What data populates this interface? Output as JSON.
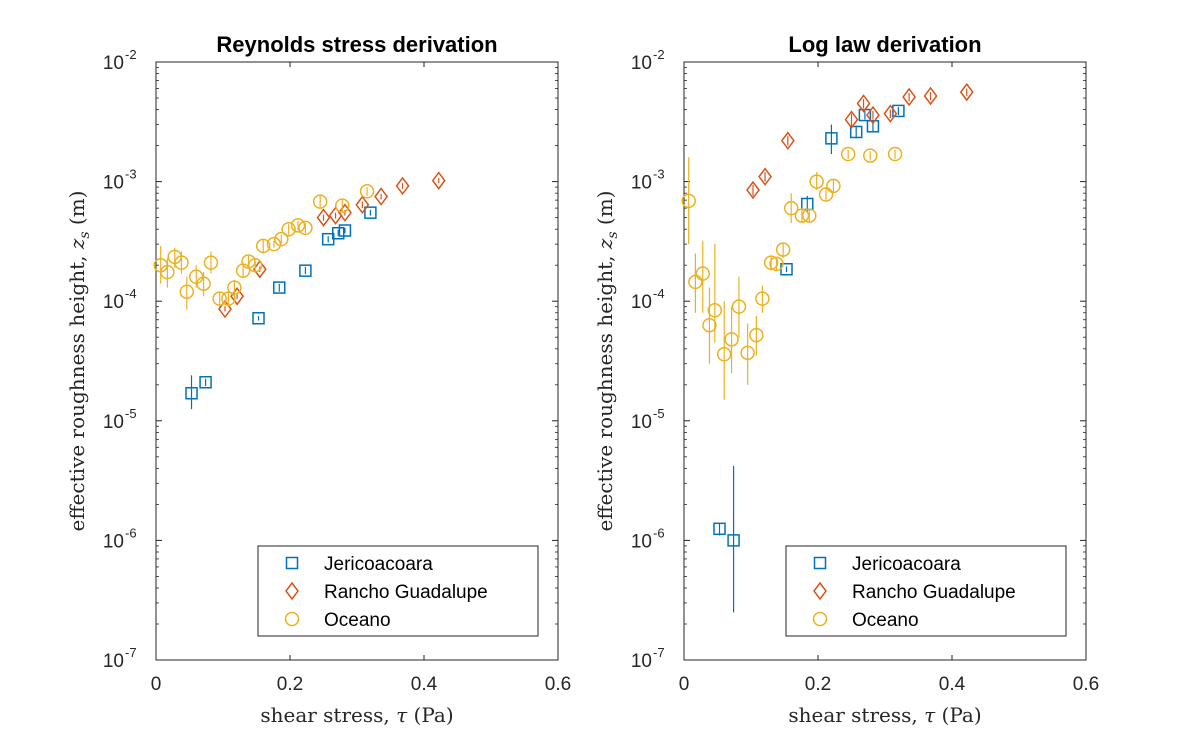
{
  "chart_data": [
    {
      "type": "scatter",
      "title": "Reynolds stress derivation",
      "xlabel": {
        "text": "shear stress, ",
        "symbol": "τ",
        "unit": " (Pa)"
      },
      "ylabel": {
        "text": "effective roughness height, ",
        "symbol": "z",
        "sub": "s",
        "unit": " (m)"
      },
      "xlim": [
        0,
        0.6
      ],
      "ylim": [
        1e-07,
        0.01
      ],
      "yscale": "log",
      "xticks": [
        0,
        0.2,
        0.4,
        0.6
      ],
      "xtick_labels": [
        "0",
        "0.2",
        "0.4",
        "0.6"
      ],
      "ytick_exponents": [
        -7,
        -6,
        -5,
        -4,
        -3,
        -2
      ],
      "ytick_base": "10",
      "grid": false,
      "legend": {
        "position": "bottom-right",
        "entries": [
          "Jericoacoara",
          "Rancho Guadalupe",
          "Oceano"
        ]
      },
      "series": [
        {
          "name": "Jericoacoara",
          "marker": "square",
          "color": "#0072BD",
          "points": [
            {
              "x": 0.053,
              "y": 1.7e-05,
              "lo": 1.25e-05,
              "hi": 2.4e-05
            },
            {
              "x": 0.074,
              "y": 2.1e-05,
              "lo": 1.95e-05,
              "hi": 2.25e-05
            },
            {
              "x": 0.153,
              "y": 7.2e-05,
              "lo": 6.9e-05,
              "hi": 7.5e-05
            },
            {
              "x": 0.184,
              "y": 0.00013,
              "lo": 0.00012,
              "hi": 0.00014
            },
            {
              "x": 0.223,
              "y": 0.00018,
              "lo": 0.000168,
              "hi": 0.000193
            },
            {
              "x": 0.257,
              "y": 0.00033,
              "lo": 0.00031,
              "hi": 0.00035
            },
            {
              "x": 0.272,
              "y": 0.00037,
              "lo": 0.00035,
              "hi": 0.000395
            },
            {
              "x": 0.282,
              "y": 0.00039,
              "lo": 0.00037,
              "hi": 0.00041
            },
            {
              "x": 0.32,
              "y": 0.00055,
              "lo": 0.00052,
              "hi": 0.00058
            }
          ]
        },
        {
          "name": "Rancho Guadalupe",
          "marker": "diamond",
          "color": "#D95319",
          "points": [
            {
              "x": 0.103,
              "y": 8.6e-05,
              "lo": 8.2e-05,
              "hi": 9.1e-05
            },
            {
              "x": 0.121,
              "y": 0.00011,
              "lo": 0.000104,
              "hi": 0.000116
            },
            {
              "x": 0.155,
              "y": 0.000185,
              "lo": 0.000175,
              "hi": 0.000195
            },
            {
              "x": 0.25,
              "y": 0.0005,
              "lo": 0.00047,
              "hi": 0.00053
            },
            {
              "x": 0.268,
              "y": 0.00052,
              "lo": 0.00049,
              "hi": 0.00055
            },
            {
              "x": 0.282,
              "y": 0.00055,
              "lo": 0.00052,
              "hi": 0.00058
            },
            {
              "x": 0.308,
              "y": 0.00064,
              "lo": 0.0006,
              "hi": 0.00068
            },
            {
              "x": 0.336,
              "y": 0.00075,
              "lo": 0.00071,
              "hi": 0.00079
            },
            {
              "x": 0.368,
              "y": 0.00092,
              "lo": 0.00087,
              "hi": 0.00097
            },
            {
              "x": 0.422,
              "y": 0.00102,
              "lo": 0.00097,
              "hi": 0.00107
            }
          ]
        },
        {
          "name": "Oceano",
          "marker": "circle",
          "color": "#EDB120",
          "points": [
            {
              "x": 0.007,
              "y": 0.0002,
              "lo": 0.00014,
              "hi": 0.00029
            },
            {
              "x": 0.017,
              "y": 0.000175,
              "lo": 0.00013,
              "hi": 0.00023
            },
            {
              "x": 0.028,
              "y": 0.000235,
              "lo": 0.00019,
              "hi": 0.00028
            },
            {
              "x": 0.038,
              "y": 0.00021,
              "lo": 0.00017,
              "hi": 0.00026
            },
            {
              "x": 0.046,
              "y": 0.00012,
              "lo": 8.5e-05,
              "hi": 0.00016
            },
            {
              "x": 0.06,
              "y": 0.00016,
              "lo": 0.00013,
              "hi": 0.0002
            },
            {
              "x": 0.071,
              "y": 0.00014,
              "lo": 0.00011,
              "hi": 0.000175
            },
            {
              "x": 0.082,
              "y": 0.00021,
              "lo": 0.00017,
              "hi": 0.00026
            },
            {
              "x": 0.095,
              "y": 0.000105,
              "lo": 9e-05,
              "hi": 0.00012
            },
            {
              "x": 0.108,
              "y": 0.000105,
              "lo": 9e-05,
              "hi": 0.00012
            },
            {
              "x": 0.117,
              "y": 0.00013,
              "lo": 0.00011,
              "hi": 0.00015
            },
            {
              "x": 0.13,
              "y": 0.00018,
              "lo": 0.00016,
              "hi": 0.0002
            },
            {
              "x": 0.138,
              "y": 0.000215,
              "lo": 0.00019,
              "hi": 0.00024
            },
            {
              "x": 0.148,
              "y": 0.0002,
              "lo": 0.00018,
              "hi": 0.00022
            },
            {
              "x": 0.16,
              "y": 0.00029,
              "lo": 0.00025,
              "hi": 0.00033
            },
            {
              "x": 0.176,
              "y": 0.0003,
              "lo": 0.00028,
              "hi": 0.00032
            },
            {
              "x": 0.187,
              "y": 0.00033,
              "lo": 0.0003,
              "hi": 0.00036
            },
            {
              "x": 0.198,
              "y": 0.0004,
              "lo": 0.00036,
              "hi": 0.00044
            },
            {
              "x": 0.212,
              "y": 0.00043,
              "lo": 0.00039,
              "hi": 0.00047
            },
            {
              "x": 0.223,
              "y": 0.00041,
              "lo": 0.00037,
              "hi": 0.00045
            },
            {
              "x": 0.245,
              "y": 0.00068,
              "lo": 0.0006,
              "hi": 0.00076
            },
            {
              "x": 0.278,
              "y": 0.00063,
              "lo": 0.00056,
              "hi": 0.0007
            },
            {
              "x": 0.315,
              "y": 0.00083,
              "lo": 0.00076,
              "hi": 0.0009
            }
          ]
        }
      ]
    },
    {
      "type": "scatter",
      "title": "Log law derivation",
      "xlabel": {
        "text": "shear stress, ",
        "symbol": "τ",
        "unit": " (Pa)"
      },
      "ylabel": {
        "text": "effective roughness height, ",
        "symbol": "z",
        "sub": "s",
        "unit": " (m)"
      },
      "xlim": [
        0,
        0.6
      ],
      "ylim": [
        1e-07,
        0.01
      ],
      "yscale": "log",
      "xticks": [
        0,
        0.2,
        0.4,
        0.6
      ],
      "xtick_labels": [
        "0",
        "0.2",
        "0.4",
        "0.6"
      ],
      "ytick_exponents": [
        -7,
        -6,
        -5,
        -4,
        -3,
        -2
      ],
      "ytick_base": "10",
      "grid": false,
      "legend": {
        "position": "bottom-right",
        "entries": [
          "Jericoacoara",
          "Rancho Guadalupe",
          "Oceano"
        ]
      },
      "series": [
        {
          "name": "Jericoacoara",
          "marker": "square",
          "color": "#0072BD",
          "points": [
            {
              "x": 0.053,
              "y": 1.25e-06,
              "lo": 1.1e-06,
              "hi": 1.4e-06
            },
            {
              "x": 0.074,
              "y": 1e-06,
              "lo": 2.5e-07,
              "hi": 4.2e-06
            },
            {
              "x": 0.153,
              "y": 0.000185,
              "lo": 0.000175,
              "hi": 0.000195
            },
            {
              "x": 0.184,
              "y": 0.00065,
              "lo": 0.00055,
              "hi": 0.00076
            },
            {
              "x": 0.22,
              "y": 0.0023,
              "lo": 0.0017,
              "hi": 0.003
            },
            {
              "x": 0.257,
              "y": 0.0026,
              "lo": 0.0023,
              "hi": 0.0029
            },
            {
              "x": 0.27,
              "y": 0.0036,
              "lo": 0.0033,
              "hi": 0.0039
            },
            {
              "x": 0.282,
              "y": 0.0029,
              "lo": 0.0026,
              "hi": 0.0032
            },
            {
              "x": 0.32,
              "y": 0.0039,
              "lo": 0.0036,
              "hi": 0.0042
            }
          ]
        },
        {
          "name": "Rancho Guadalupe",
          "marker": "diamond",
          "color": "#D95319",
          "points": [
            {
              "x": 0.103,
              "y": 0.00085,
              "lo": 0.00076,
              "hi": 0.00094
            },
            {
              "x": 0.121,
              "y": 0.0011,
              "lo": 0.001,
              "hi": 0.0012
            },
            {
              "x": 0.155,
              "y": 0.0022,
              "lo": 0.002,
              "hi": 0.0024
            },
            {
              "x": 0.25,
              "y": 0.0033,
              "lo": 0.0029,
              "hi": 0.0037
            },
            {
              "x": 0.268,
              "y": 0.0045,
              "lo": 0.0041,
              "hi": 0.0049
            },
            {
              "x": 0.282,
              "y": 0.0036,
              "lo": 0.0033,
              "hi": 0.0039
            },
            {
              "x": 0.308,
              "y": 0.0037,
              "lo": 0.0034,
              "hi": 0.004
            },
            {
              "x": 0.336,
              "y": 0.0051,
              "lo": 0.0047,
              "hi": 0.0055
            },
            {
              "x": 0.368,
              "y": 0.0052,
              "lo": 0.0048,
              "hi": 0.0056
            },
            {
              "x": 0.422,
              "y": 0.0056,
              "lo": 0.0052,
              "hi": 0.006
            }
          ]
        },
        {
          "name": "Oceano",
          "marker": "circle",
          "color": "#EDB120",
          "points": [
            {
              "x": 0.007,
              "y": 0.00069,
              "lo": 0.0003,
              "hi": 0.0016
            },
            {
              "x": 0.017,
              "y": 0.000145,
              "lo": 8e-05,
              "hi": 0.00025
            },
            {
              "x": 0.028,
              "y": 0.00017,
              "lo": 8e-05,
              "hi": 0.00032
            },
            {
              "x": 0.038,
              "y": 6.3e-05,
              "lo": 3e-05,
              "hi": 0.00013
            },
            {
              "x": 0.046,
              "y": 8.4e-05,
              "lo": 4.5e-05,
              "hi": 0.0003
            },
            {
              "x": 0.06,
              "y": 3.6e-05,
              "lo": 1.5e-05,
              "hi": 0.0001
            },
            {
              "x": 0.071,
              "y": 4.8e-05,
              "lo": 2.5e-05,
              "hi": 9e-05
            },
            {
              "x": 0.082,
              "y": 9e-05,
              "lo": 5e-05,
              "hi": 0.00016
            },
            {
              "x": 0.095,
              "y": 3.7e-05,
              "lo": 2e-05,
              "hi": 6.5e-05
            },
            {
              "x": 0.108,
              "y": 5.2e-05,
              "lo": 3.5e-05,
              "hi": 7.5e-05
            },
            {
              "x": 0.117,
              "y": 0.000105,
              "lo": 8e-05,
              "hi": 0.000135
            },
            {
              "x": 0.13,
              "y": 0.00021,
              "lo": 0.00018,
              "hi": 0.00024
            },
            {
              "x": 0.138,
              "y": 0.000205,
              "lo": 0.00018,
              "hi": 0.00023
            },
            {
              "x": 0.148,
              "y": 0.00027,
              "lo": 0.00023,
              "hi": 0.00031
            },
            {
              "x": 0.16,
              "y": 0.0006,
              "lo": 0.00045,
              "hi": 0.0008
            },
            {
              "x": 0.176,
              "y": 0.00052,
              "lo": 0.00045,
              "hi": 0.0006
            },
            {
              "x": 0.187,
              "y": 0.00052,
              "lo": 0.00046,
              "hi": 0.00058
            },
            {
              "x": 0.198,
              "y": 0.001,
              "lo": 0.00085,
              "hi": 0.0012
            },
            {
              "x": 0.212,
              "y": 0.00078,
              "lo": 0.00068,
              "hi": 0.0009
            },
            {
              "x": 0.223,
              "y": 0.00092,
              "lo": 0.0008,
              "hi": 0.00105
            },
            {
              "x": 0.245,
              "y": 0.0017,
              "lo": 0.00155,
              "hi": 0.00185
            },
            {
              "x": 0.278,
              "y": 0.00165,
              "lo": 0.0015,
              "hi": 0.0018
            },
            {
              "x": 0.315,
              "y": 0.0017,
              "lo": 0.00155,
              "hi": 0.00185
            }
          ]
        }
      ]
    }
  ]
}
